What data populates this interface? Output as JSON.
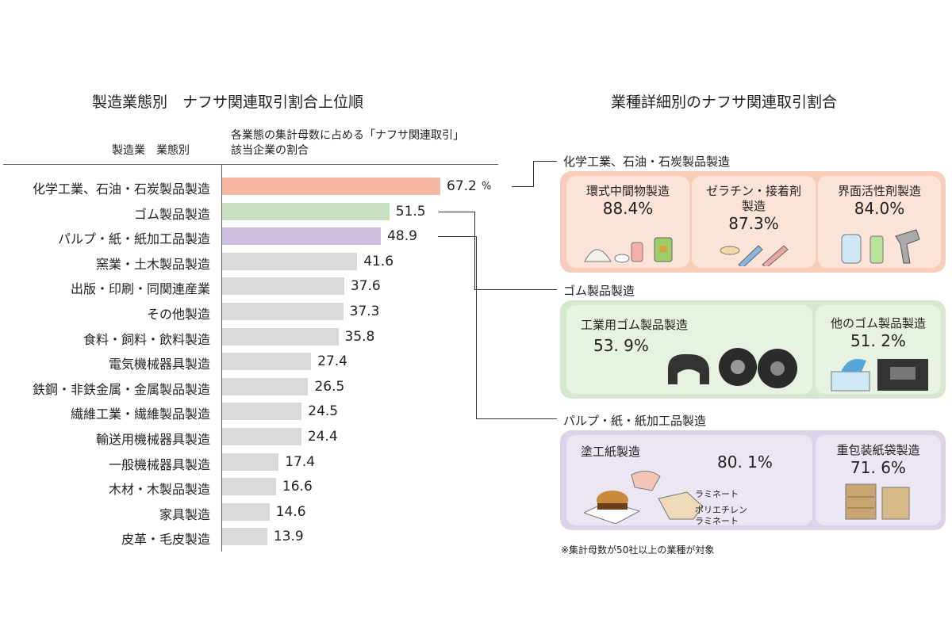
{
  "chart_data": {
    "type": "bar",
    "orientation": "horizontal",
    "title": "製造業態別　ナフサ関連取引割合上位順",
    "category_header": "製造業　業態別",
    "value_header": [
      "各業態の集計母数に占める「ナフサ関連取引」",
      "該当企業の割合"
    ],
    "unit": "%",
    "categories": [
      "化学工業、石油・石炭製品製造",
      "ゴム製品製造",
      "パルプ・紙・紙加工品製造",
      "窯業・土木製品製造",
      "出版・印刷・同関連産業",
      "その他製造",
      "食料・飼料・飲料製造",
      "電気機械器具製造",
      "鉄鋼・非鉄金属・金属製品製造",
      "繊維工業・繊維製品製造",
      "輸送用機械器具製造",
      "一般機械器具製造",
      "木材・木製品製造",
      "家具製造",
      "皮革・毛皮製造"
    ],
    "values": [
      67.2,
      51.5,
      48.9,
      41.6,
      37.6,
      37.3,
      35.8,
      27.4,
      26.5,
      24.5,
      24.4,
      17.4,
      16.6,
      14.6,
      13.9
    ],
    "value_labels": [
      "67.2",
      "51.5",
      "48.9",
      "41.6",
      "37.6",
      "37.3",
      "35.8",
      "27.4",
      "26.5",
      "24.5",
      "24.4",
      "17.4",
      "16.6",
      "14.6",
      "13.9"
    ],
    "colors": [
      "#f5b8a2",
      "#c6e0c0",
      "#cdbfe2",
      "#d9d9d9",
      "#d9d9d9",
      "#d9d9d9",
      "#d9d9d9",
      "#d9d9d9",
      "#d9d9d9",
      "#d9d9d9",
      "#d9d9d9",
      "#d9d9d9",
      "#d9d9d9",
      "#d9d9d9",
      "#d9d9d9"
    ],
    "xlim": [
      0,
      70
    ],
    "grid": false
  },
  "detail": {
    "title": "業種詳細別のナフサ関連取引割合",
    "groups": [
      {
        "name": "化学工業、石油・石炭製品製造",
        "color": "#f8cdb9",
        "card_color": "#fbe3d7",
        "items": [
          {
            "name": "環式中間物製造",
            "pct": "88.4%"
          },
          {
            "name": "ゼラチン・接着剤\n製造",
            "pct": "87.3%"
          },
          {
            "name": "界面活性剤製造",
            "pct": "84.0%"
          }
        ]
      },
      {
        "name": "ゴム製品製造",
        "color": "#d6e8cf",
        "card_color": "#e8f2e3",
        "items": [
          {
            "name": "工業用ゴム製品製造",
            "pct": "53. 9%"
          },
          {
            "name": "他のゴム製品製造",
            "pct": "51. 2%"
          }
        ]
      },
      {
        "name": "パルプ・紙・紙加工品製造",
        "color": "#dcd3e8",
        "card_color": "#ebe6f1",
        "items": [
          {
            "name": "塗工紙製造",
            "pct": "80. 1%",
            "labels": [
              "ラミネート",
              "ポリエチレン\nラミネート"
            ]
          },
          {
            "name": "重包装紙袋製造",
            "pct": "71. 6%"
          }
        ]
      }
    ],
    "note": "※集計母数が50社以上の業種が対象"
  }
}
